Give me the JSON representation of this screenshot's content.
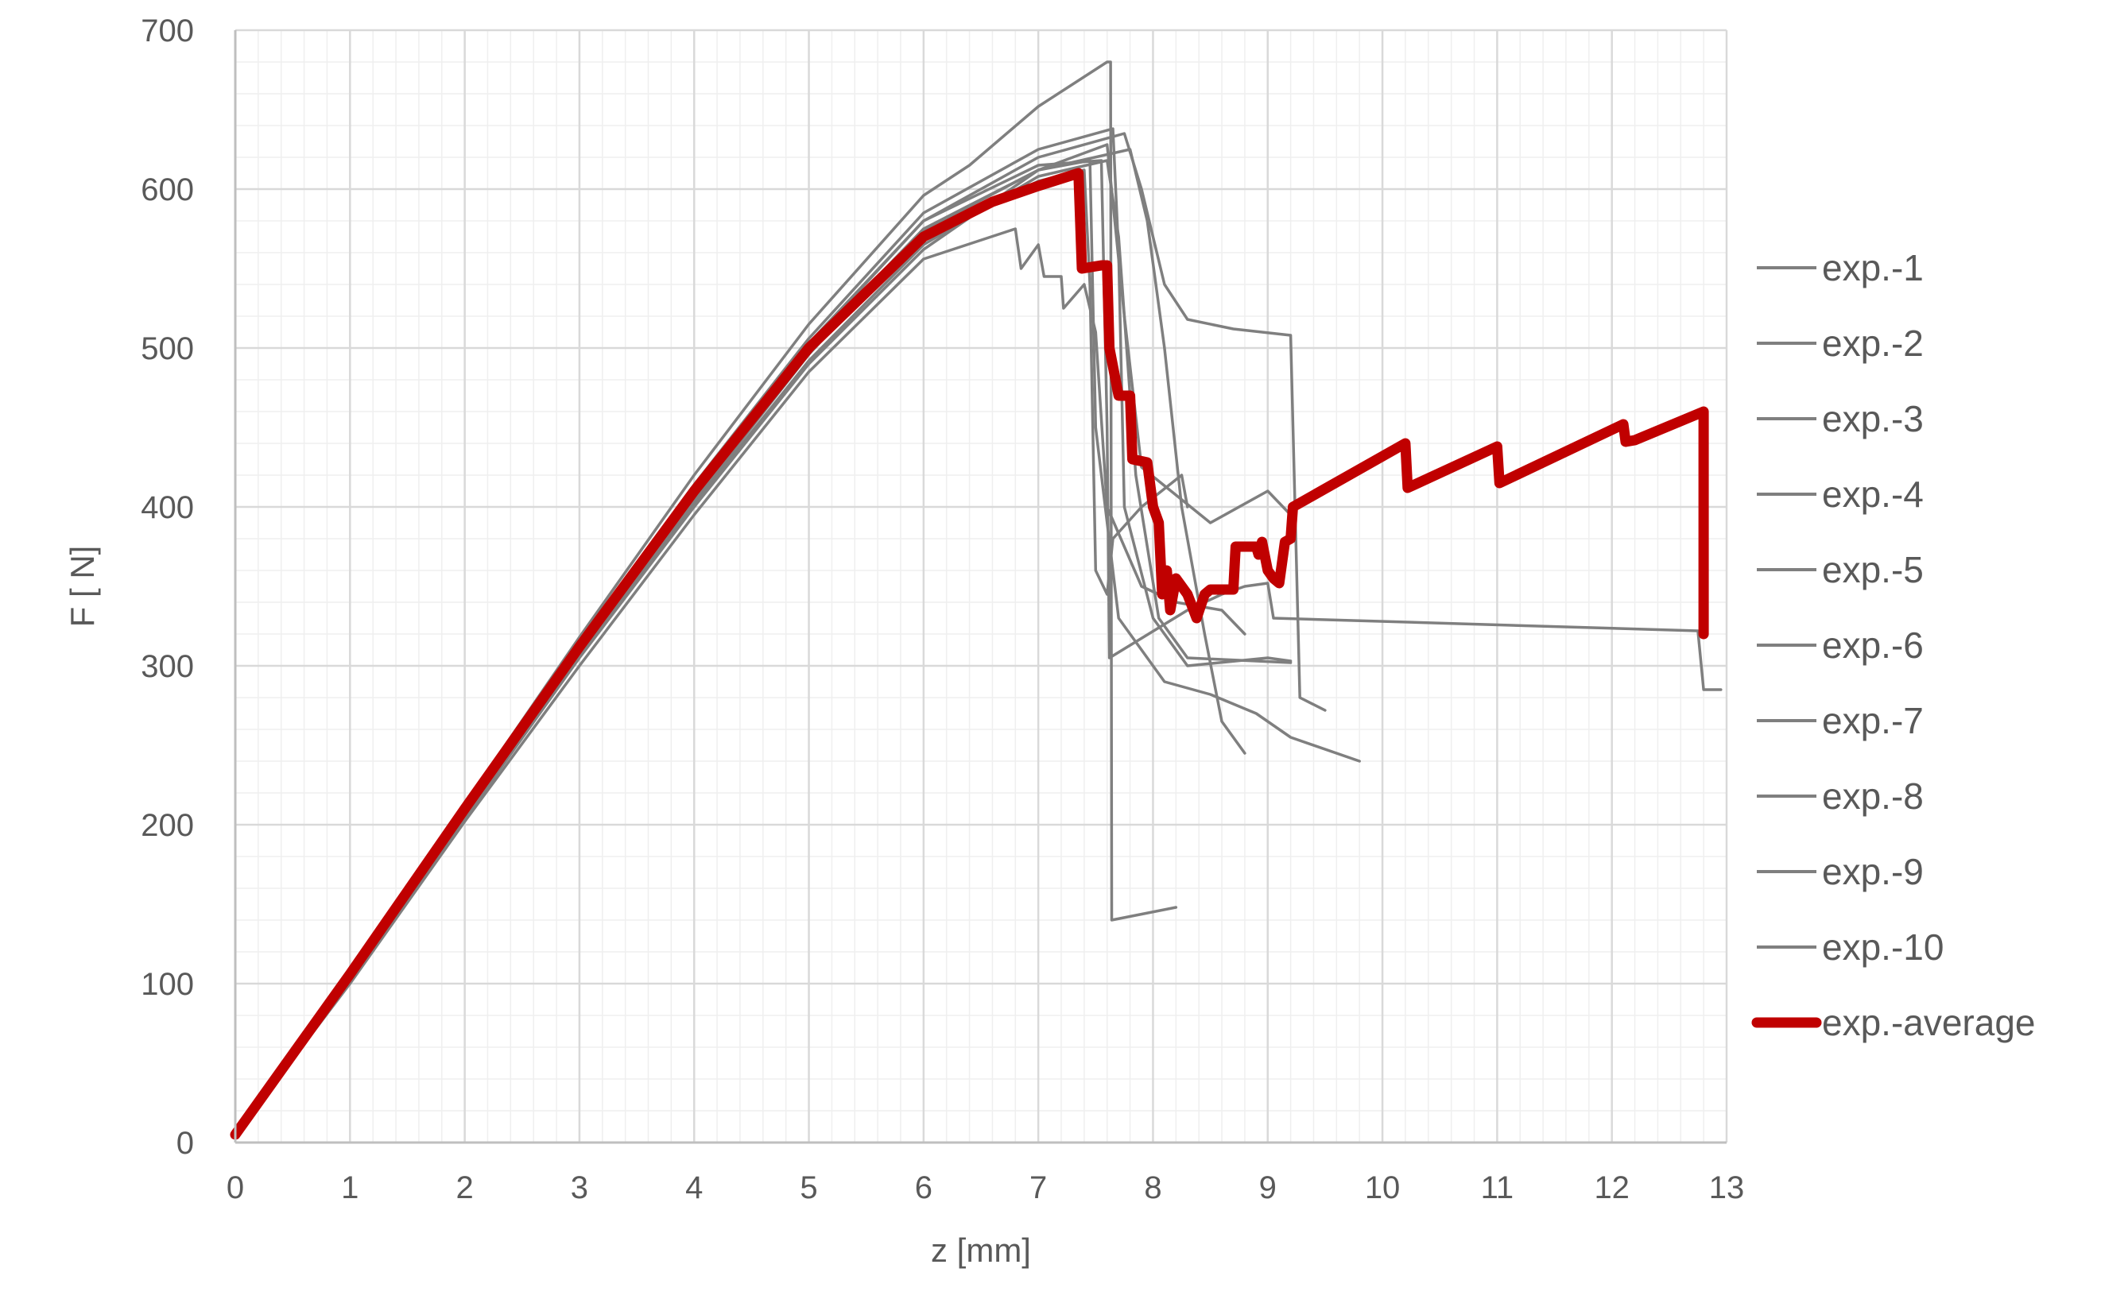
{
  "chart_data": {
    "type": "line",
    "xlabel": "z [mm]",
    "ylabel": "F [ N]",
    "xlim": [
      0,
      13
    ],
    "ylim": [
      0,
      700
    ],
    "x_ticks": [
      "0",
      "1",
      "2",
      "3",
      "4",
      "5",
      "6",
      "7",
      "8",
      "9",
      "10",
      "11",
      "12",
      "13"
    ],
    "y_ticks": [
      "0",
      "100",
      "200",
      "300",
      "400",
      "500",
      "600",
      "700"
    ],
    "grid": "major and minor",
    "legend_position": "right",
    "colors": {
      "experiment": "#7f7f7f",
      "average": "#c00000",
      "grid_major": "#d9d9d9",
      "grid_minor": "#efefef"
    },
    "series": [
      {
        "name": "exp.-1",
        "points": [
          [
            0,
            5
          ],
          [
            1,
            108
          ],
          [
            2,
            213
          ],
          [
            3,
            318
          ],
          [
            4,
            420
          ],
          [
            5,
            515
          ],
          [
            6,
            596
          ],
          [
            6.4,
            615
          ],
          [
            7.0,
            652
          ],
          [
            7.6,
            680
          ],
          [
            7.63,
            680
          ],
          [
            7.64,
            140
          ],
          [
            8.2,
            148
          ]
        ]
      },
      {
        "name": "exp.-2",
        "points": [
          [
            0,
            5
          ],
          [
            1,
            105
          ],
          [
            2,
            210
          ],
          [
            3,
            312
          ],
          [
            4,
            410
          ],
          [
            5,
            503
          ],
          [
            6,
            580
          ],
          [
            7.0,
            620
          ],
          [
            7.75,
            635
          ],
          [
            7.9,
            600
          ],
          [
            8.1,
            540
          ],
          [
            8.3,
            518
          ],
          [
            8.7,
            512
          ],
          [
            9.2,
            508
          ],
          [
            9.28,
            280
          ],
          [
            9.5,
            272
          ]
        ]
      },
      {
        "name": "exp.-3",
        "points": [
          [
            0,
            5
          ],
          [
            1,
            104
          ],
          [
            2,
            208
          ],
          [
            3,
            310
          ],
          [
            4,
            408
          ],
          [
            5,
            500
          ],
          [
            6,
            575
          ],
          [
            7.0,
            612
          ],
          [
            7.8,
            625
          ],
          [
            7.95,
            580
          ],
          [
            8.1,
            500
          ],
          [
            8.25,
            400
          ],
          [
            8.45,
            320
          ],
          [
            8.6,
            265
          ],
          [
            8.8,
            245
          ]
        ]
      },
      {
        "name": "exp.-4",
        "points": [
          [
            0,
            5
          ],
          [
            1,
            103
          ],
          [
            2,
            206
          ],
          [
            3,
            306
          ],
          [
            4,
            402
          ],
          [
            5,
            492
          ],
          [
            6,
            565
          ],
          [
            7.0,
            608
          ],
          [
            7.6,
            618
          ],
          [
            7.7,
            570
          ],
          [
            7.85,
            420
          ],
          [
            8.05,
            330
          ],
          [
            8.3,
            305
          ],
          [
            9.2,
            302
          ]
        ]
      },
      {
        "name": "exp.-5",
        "points": [
          [
            0,
            5
          ],
          [
            1,
            100
          ],
          [
            2,
            202
          ],
          [
            3,
            300
          ],
          [
            4,
            395
          ],
          [
            5,
            485
          ],
          [
            6,
            556
          ],
          [
            6.8,
            575
          ],
          [
            6.85,
            550
          ],
          [
            7.0,
            565
          ],
          [
            7.05,
            545
          ],
          [
            7.2,
            545
          ],
          [
            7.22,
            525
          ],
          [
            7.4,
            540
          ],
          [
            7.5,
            510
          ],
          [
            7.6,
            400
          ],
          [
            7.9,
            350
          ],
          [
            8.2,
            340
          ],
          [
            8.6,
            335
          ],
          [
            8.8,
            320
          ]
        ]
      },
      {
        "name": "exp.-6",
        "points": [
          [
            0,
            5
          ],
          [
            1,
            102
          ],
          [
            2,
            204
          ],
          [
            3,
            305
          ],
          [
            4,
            400
          ],
          [
            5,
            490
          ],
          [
            6,
            562
          ],
          [
            7.0,
            612
          ],
          [
            7.6,
            628
          ],
          [
            7.75,
            520
          ],
          [
            7.9,
            425
          ],
          [
            8.5,
            390
          ],
          [
            9.0,
            410
          ],
          [
            9.2,
            395
          ]
        ]
      },
      {
        "name": "exp.-7",
        "points": [
          [
            0,
            5
          ],
          [
            1,
            106
          ],
          [
            2,
            211
          ],
          [
            3,
            315
          ],
          [
            4,
            414
          ],
          [
            5,
            506
          ],
          [
            6,
            585
          ],
          [
            7.0,
            625
          ],
          [
            7.65,
            638
          ],
          [
            7.7,
            560
          ],
          [
            7.75,
            400
          ],
          [
            8.0,
            330
          ],
          [
            8.3,
            300
          ],
          [
            9.0,
            305
          ],
          [
            9.2,
            303
          ]
        ]
      },
      {
        "name": "exp.-8",
        "points": [
          [
            0,
            5
          ],
          [
            1,
            104
          ],
          [
            2,
            207
          ],
          [
            3,
            309
          ],
          [
            4,
            405
          ],
          [
            5,
            497
          ],
          [
            6,
            570
          ],
          [
            7.0,
            605
          ],
          [
            7.4,
            612
          ],
          [
            7.45,
            540
          ],
          [
            7.5,
            360
          ],
          [
            7.6,
            345
          ],
          [
            7.65,
            380
          ],
          [
            7.9,
            400
          ],
          [
            8.25,
            420
          ],
          [
            8.3,
            400
          ]
        ]
      },
      {
        "name": "exp.-9",
        "points": [
          [
            0,
            5
          ],
          [
            1,
            103
          ],
          [
            2,
            205
          ],
          [
            3,
            307
          ],
          [
            4,
            404
          ],
          [
            5,
            496
          ],
          [
            6,
            574
          ],
          [
            7.0,
            612
          ],
          [
            7.45,
            618
          ],
          [
            7.5,
            450
          ],
          [
            7.7,
            330
          ],
          [
            8.1,
            290
          ],
          [
            8.5,
            282
          ],
          [
            8.9,
            270
          ],
          [
            9.2,
            255
          ],
          [
            9.8,
            240
          ]
        ]
      },
      {
        "name": "exp.-10",
        "points": [
          [
            0,
            5
          ],
          [
            1,
            105
          ],
          [
            2,
            209
          ],
          [
            3,
            312
          ],
          [
            4,
            410
          ],
          [
            5,
            502
          ],
          [
            6,
            580
          ],
          [
            7.0,
            615
          ],
          [
            7.55,
            618
          ],
          [
            7.6,
            450
          ],
          [
            7.62,
            305
          ],
          [
            8.3,
            335
          ],
          [
            8.6,
            345
          ],
          [
            8.8,
            350
          ],
          [
            9.0,
            352
          ],
          [
            9.05,
            330
          ],
          [
            12.75,
            322
          ],
          [
            12.8,
            285
          ],
          [
            12.95,
            285
          ]
        ]
      },
      {
        "name": "exp.-average",
        "points": [
          [
            0,
            5
          ],
          [
            1,
            106
          ],
          [
            2,
            210
          ],
          [
            3,
            312
          ],
          [
            4,
            410
          ],
          [
            5,
            500
          ],
          [
            6,
            570
          ],
          [
            6.6,
            592
          ],
          [
            7.0,
            602
          ],
          [
            7.35,
            610
          ],
          [
            7.38,
            550
          ],
          [
            7.55,
            552
          ],
          [
            7.6,
            552
          ],
          [
            7.62,
            500
          ],
          [
            7.7,
            470
          ],
          [
            7.8,
            470
          ],
          [
            7.82,
            430
          ],
          [
            7.95,
            428
          ],
          [
            8.0,
            400
          ],
          [
            8.05,
            390
          ],
          [
            8.08,
            345
          ],
          [
            8.12,
            360
          ],
          [
            8.15,
            335
          ],
          [
            8.2,
            355
          ],
          [
            8.3,
            345
          ],
          [
            8.38,
            330
          ],
          [
            8.45,
            345
          ],
          [
            8.5,
            348
          ],
          [
            8.7,
            348
          ],
          [
            8.72,
            375
          ],
          [
            8.9,
            375
          ],
          [
            8.92,
            370
          ],
          [
            8.95,
            378
          ],
          [
            9.0,
            360
          ],
          [
            9.05,
            355
          ],
          [
            9.1,
            352
          ],
          [
            9.15,
            378
          ],
          [
            9.2,
            380
          ],
          [
            9.22,
            400
          ],
          [
            10.2,
            440
          ],
          [
            10.22,
            412
          ],
          [
            11.0,
            438
          ],
          [
            11.02,
            415
          ],
          [
            12.1,
            452
          ],
          [
            12.12,
            441
          ],
          [
            12.2,
            442
          ],
          [
            12.8,
            460
          ],
          [
            12.8,
            320
          ]
        ]
      }
    ]
  }
}
